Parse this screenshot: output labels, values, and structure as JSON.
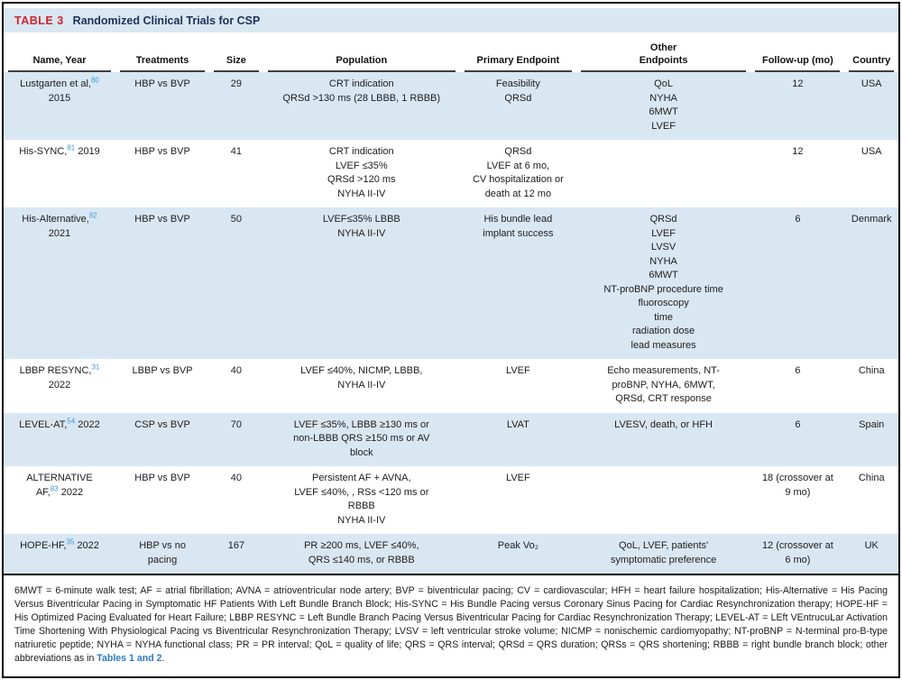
{
  "header": {
    "label": "TABLE 3",
    "title": "Randomized Clinical Trials for CSP"
  },
  "table": {
    "columns": [
      "Name, Year",
      "Treatments",
      "Size",
      "Population",
      "Primary Endpoint",
      "Other\nEndpoints",
      "Follow-up (mo)",
      "Country"
    ],
    "rows": [
      {
        "name_pre": "Lustgarten et al,",
        "ref": "80",
        "name_post": "\n2015",
        "treatments": "HBP vs BVP",
        "size": "29",
        "population": "CRT indication\nQRSd >130 ms (28 LBBB, 1 RBBB)",
        "primary": "Feasibility\nQRSd",
        "other": "QoL\nNYHA\n6MWT\nLVEF",
        "followup": "12",
        "country": "USA"
      },
      {
        "name_pre": "His-SYNC,",
        "ref": "81",
        "name_post": " 2019",
        "treatments": "HBP vs BVP",
        "size": "41",
        "population": "CRT indication\nLVEF ≤35%\nQRSd >120 ms\nNYHA II-IV",
        "primary": "QRSd\nLVEF at 6 mo,\nCV hospitalization or\ndeath at 12 mo",
        "other": "",
        "followup": "12",
        "country": "USA"
      },
      {
        "name_pre": "His-Alternative,",
        "ref": "82",
        "name_post": "\n2021",
        "treatments": "HBP vs BVP",
        "size": "50",
        "population": "LVEF≤35% LBBB\nNYHA II-IV",
        "primary": "His bundle lead\nimplant success",
        "other": "QRSd\nLVEF\nLVSV\nNYHA\n6MWT\nNT-proBNP procedure time\nfluoroscopy\ntime\nradiation dose\nlead measures",
        "followup": "6",
        "country": "Denmark"
      },
      {
        "name_pre": "LBBP RESYNC,",
        "ref": "31",
        "name_post": "\n2022",
        "treatments": "LBBP vs BVP",
        "size": "40",
        "population": "LVEF ≤40%, NICMP, LBBB,\nNYHA II-IV",
        "primary": "LVEF",
        "other": "Echo measurements, NT-\nproBNP, NYHA, 6MWT,\nQRSd, CRT response",
        "followup": "6",
        "country": "China"
      },
      {
        "name_pre": "LEVEL-AT,",
        "ref": "54",
        "name_post": " 2022",
        "treatments": "CSP vs BVP",
        "size": "70",
        "population": "LVEF ≤35%, LBBB ≥130 ms or\nnon-LBBB QRS ≥150 ms or AV\nblock",
        "primary": "LVAT",
        "other": "LVESV, death, or HFH",
        "followup": "6",
        "country": "Spain"
      },
      {
        "name_pre": "ALTERNATIVE\nAF,",
        "ref": "83",
        "name_post": " 2022",
        "treatments": "HBP vs BVP",
        "size": "40",
        "population": "Persistent AF + AVNA,\nLVEF ≤40%, , RSs <120 ms or\nRBBB\nNYHA II-IV",
        "primary": "LVEF",
        "other": "",
        "followup": "18 (crossover at\n9 mo)",
        "country": "China"
      },
      {
        "name_pre": "HOPE-HF,",
        "ref": "35",
        "name_post": " 2022",
        "treatments": "HBP vs no\npacing",
        "size": "167",
        "population": "PR ≥200 ms, LVEF ≤40%,\nQRS ≤140 ms, or RBBB",
        "primary": "Peak Vo₂",
        "other": "QoL, LVEF, patients'\nsymptomatic preference",
        "followup": "12 (crossover at\n6 mo)",
        "country": "UK"
      }
    ]
  },
  "footnote": {
    "text": "6MWT = 6-minute walk test; AF = atrial fibrillation; AVNA = atrioventricular node artery; BVP = biventricular pacing; CV = cardiovascular; HFH = heart failure hospitalization; His-Alternative = His Pacing Versus Biventricular Pacing in Symptomatic HF Patients With Left Bundle Branch Block; His-SYNC = His Bundle Pacing versus Coronary Sinus Pacing for Cardiac Resynchronization therapy; HOPE-HF = His Optimized Pacing Evaluated for Heart Failure; LBBP RESYNC = Left Bundle Branch Pacing Versus Biventricular Pacing for Cardiac Resynchronization Therapy; LEVEL-AT = LEft VEntrucuLar Activation Time Shortening With Physiological Pacing vs Biventricular Resynchronization Therapy; LVSV = left ventricular stroke volume; NICMP = nonischemic cardiomyopathy; NT-proBNP = N-terminal pro-B-type natriuretic peptide; NYHA = NYHA functional class; PR = PR interval; QoL = quality of life; QRS = QRS interval; QRSd = QRS duration; QRSs = QRS shortening; RBBB = right bundle branch block; other abbreviations as in ",
    "link_text": "Tables 1 and 2",
    "suffix": ".",
    "colors": {
      "stripe_blue": "#d9e7f3",
      "label_red": "#d2232a",
      "title_navy": "#1c3258",
      "ref_blue": "#3b9cd9",
      "link_blue": "#2b7cbf"
    }
  }
}
